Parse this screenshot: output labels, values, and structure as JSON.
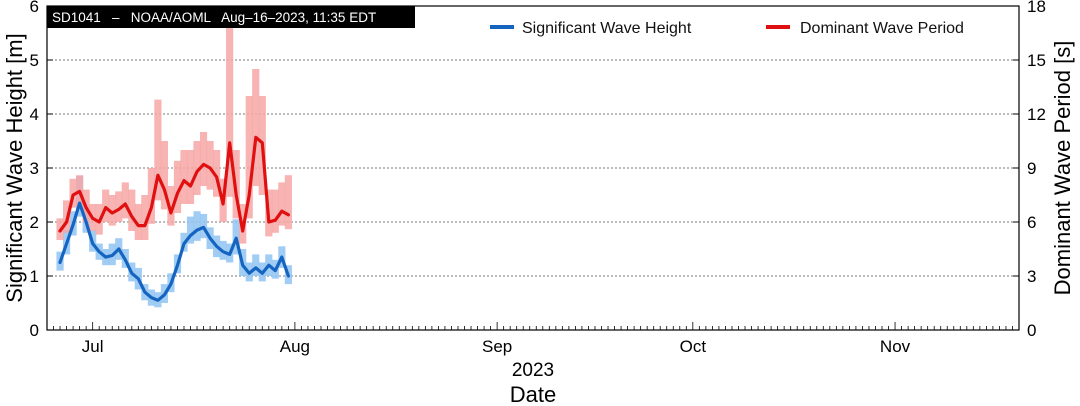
{
  "chart_data": {
    "type": "line",
    "title": "SD1041   –   NOAA/AOML   Aug–16–2023, 11:35 EDT",
    "xlabel": "Date",
    "xlabel_year": "2023",
    "ylabel_left": "Significant Wave Height [m]",
    "ylabel_right": "Dominant Wave Period [s]",
    "xlim": [
      "2023-06-24",
      "2023-11-20"
    ],
    "ylim_left": [
      0,
      6
    ],
    "ylim_right": [
      0,
      18
    ],
    "yticks_left": [
      0,
      1,
      2,
      3,
      4,
      5,
      6
    ],
    "yticks_right": [
      0,
      3,
      6,
      9,
      12,
      15,
      18
    ],
    "xticks": [
      {
        "date": "2023-07-01",
        "label": "Jul"
      },
      {
        "date": "2023-08-01",
        "label": "Aug"
      },
      {
        "date": "2023-09-01",
        "label": "Sep"
      },
      {
        "date": "2023-10-01",
        "label": "Oct"
      },
      {
        "date": "2023-11-01",
        "label": "Nov"
      }
    ],
    "grid": true,
    "legend_position": "top",
    "series": [
      {
        "name": "Significant Wave Height",
        "axis": "left",
        "color": "#1565c0",
        "band_color": "#90c4f2",
        "x": [
          "2023-06-26",
          "2023-06-27",
          "2023-06-28",
          "2023-06-29",
          "2023-06-30",
          "2023-07-01",
          "2023-07-02",
          "2023-07-03",
          "2023-07-04",
          "2023-07-05",
          "2023-07-06",
          "2023-07-07",
          "2023-07-08",
          "2023-07-09",
          "2023-07-10",
          "2023-07-11",
          "2023-07-12",
          "2023-07-13",
          "2023-07-14",
          "2023-07-15",
          "2023-07-16",
          "2023-07-17",
          "2023-07-18",
          "2023-07-19",
          "2023-07-20",
          "2023-07-21",
          "2023-07-22",
          "2023-07-23",
          "2023-07-24",
          "2023-07-25",
          "2023-07-26",
          "2023-07-27",
          "2023-07-28",
          "2023-07-29",
          "2023-07-30",
          "2023-07-31"
        ],
        "y": [
          1.25,
          1.6,
          1.95,
          2.35,
          2.0,
          1.6,
          1.45,
          1.35,
          1.38,
          1.5,
          1.3,
          1.05,
          0.95,
          0.7,
          0.6,
          0.55,
          0.65,
          0.85,
          1.2,
          1.6,
          1.75,
          1.85,
          1.9,
          1.7,
          1.55,
          1.45,
          1.4,
          1.7,
          1.2,
          1.05,
          1.15,
          1.05,
          1.2,
          1.1,
          1.35,
          1.0
        ],
        "band_low": [
          1.1,
          1.4,
          1.75,
          2.1,
          1.8,
          1.45,
          1.3,
          1.2,
          1.2,
          1.3,
          1.15,
          0.9,
          0.75,
          0.55,
          0.45,
          0.42,
          0.5,
          0.7,
          1.05,
          1.45,
          1.6,
          1.65,
          1.7,
          1.5,
          1.35,
          1.3,
          1.25,
          1.4,
          1.0,
          0.9,
          1.0,
          0.9,
          1.0,
          0.95,
          1.15,
          0.85
        ],
        "band_high": [
          1.45,
          1.85,
          2.2,
          2.85,
          2.3,
          1.85,
          1.6,
          1.5,
          1.6,
          1.7,
          1.5,
          1.25,
          1.15,
          0.85,
          0.75,
          0.7,
          0.85,
          1.05,
          1.4,
          1.8,
          2.1,
          2.2,
          2.15,
          1.9,
          1.75,
          1.65,
          1.6,
          2.05,
          1.5,
          1.25,
          1.4,
          1.25,
          1.4,
          1.3,
          1.55,
          1.2
        ]
      },
      {
        "name": "Dominant Wave Period",
        "axis": "right",
        "color": "#e01010",
        "band_color": "#f7a6a6",
        "x": [
          "2023-06-26",
          "2023-06-27",
          "2023-06-28",
          "2023-06-29",
          "2023-06-30",
          "2023-07-01",
          "2023-07-02",
          "2023-07-03",
          "2023-07-04",
          "2023-07-05",
          "2023-07-06",
          "2023-07-07",
          "2023-07-08",
          "2023-07-09",
          "2023-07-10",
          "2023-07-11",
          "2023-07-12",
          "2023-07-13",
          "2023-07-14",
          "2023-07-15",
          "2023-07-16",
          "2023-07-17",
          "2023-07-18",
          "2023-07-19",
          "2023-07-20",
          "2023-07-21",
          "2023-07-22",
          "2023-07-23",
          "2023-07-24",
          "2023-07-25",
          "2023-07-26",
          "2023-07-27",
          "2023-07-28",
          "2023-07-29",
          "2023-07-30",
          "2023-07-31"
        ],
        "y": [
          5.5,
          6.0,
          7.5,
          7.7,
          6.8,
          6.2,
          6.0,
          6.8,
          6.5,
          6.7,
          7.0,
          6.3,
          5.8,
          5.8,
          6.8,
          8.6,
          7.8,
          6.5,
          7.6,
          8.3,
          8.0,
          8.8,
          9.2,
          9.0,
          8.5,
          7.0,
          10.4,
          7.5,
          5.5,
          7.5,
          10.7,
          10.4,
          6.0,
          6.1,
          6.6,
          6.4
        ],
        "band_low": [
          5.0,
          5.4,
          6.8,
          6.9,
          6.0,
          5.5,
          5.3,
          6.0,
          5.8,
          6.0,
          6.2,
          5.5,
          5.0,
          5.0,
          5.9,
          7.2,
          6.7,
          5.8,
          6.5,
          7.0,
          7.0,
          7.5,
          8.0,
          7.8,
          7.4,
          6.0,
          7.4,
          6.2,
          4.8,
          6.2,
          8.0,
          7.5,
          5.2,
          5.4,
          5.8,
          5.6
        ],
        "band_high": [
          6.2,
          7.2,
          8.4,
          8.6,
          7.8,
          7.0,
          7.0,
          7.8,
          7.5,
          7.7,
          8.2,
          7.8,
          7.0,
          7.5,
          9.0,
          12.8,
          10.5,
          8.0,
          9.4,
          10.0,
          10.0,
          10.5,
          11.0,
          10.5,
          10.0,
          8.4,
          17.5,
          10.0,
          7.0,
          13.0,
          14.5,
          13.0,
          7.8,
          7.8,
          8.2,
          8.6
        ]
      }
    ]
  }
}
